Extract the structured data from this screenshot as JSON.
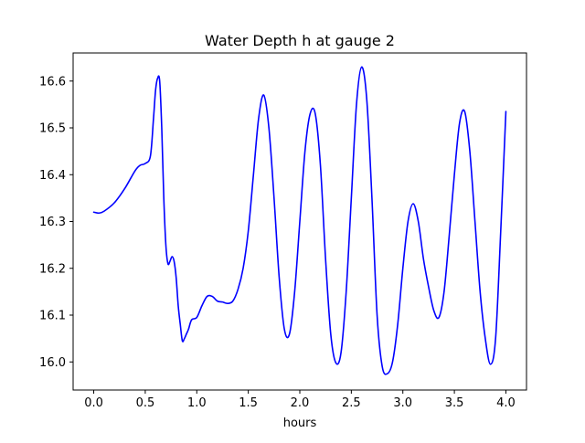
{
  "chart_data": {
    "type": "line",
    "title": "Water Depth h at gauge 2",
    "xlabel": "hours",
    "ylabel": "",
    "xlim": [
      -0.2,
      4.2
    ],
    "ylim": [
      15.94,
      16.66
    ],
    "xticks": [
      0.0,
      0.5,
      1.0,
      1.5,
      2.0,
      2.5,
      3.0,
      3.5,
      4.0
    ],
    "xtick_labels": [
      "0.0",
      "0.5",
      "1.0",
      "1.5",
      "2.0",
      "2.5",
      "3.0",
      "3.5",
      "4.0"
    ],
    "yticks": [
      16.0,
      16.1,
      16.2,
      16.3,
      16.4,
      16.5,
      16.6
    ],
    "ytick_labels": [
      "16.0",
      "16.1",
      "16.2",
      "16.3",
      "16.4",
      "16.5",
      "16.6"
    ],
    "grid": false,
    "series": [
      {
        "color": "#0000ff",
        "x": [
          0.0,
          0.05,
          0.1,
          0.2,
          0.3,
          0.4,
          0.45,
          0.5,
          0.55,
          0.58,
          0.6,
          0.62,
          0.64,
          0.66,
          0.68,
          0.7,
          0.72,
          0.74,
          0.76,
          0.78,
          0.8,
          0.82,
          0.84,
          0.86,
          0.88,
          0.9,
          0.92,
          0.95,
          1.0,
          1.05,
          1.1,
          1.15,
          1.2,
          1.25,
          1.3,
          1.35,
          1.4,
          1.45,
          1.5,
          1.55,
          1.6,
          1.65,
          1.7,
          1.75,
          1.8,
          1.85,
          1.9,
          1.95,
          2.0,
          2.05,
          2.1,
          2.15,
          2.2,
          2.25,
          2.3,
          2.35,
          2.4,
          2.45,
          2.5,
          2.55,
          2.6,
          2.65,
          2.7,
          2.75,
          2.8,
          2.85,
          2.9,
          2.95,
          3.0,
          3.05,
          3.1,
          3.15,
          3.2,
          3.25,
          3.3,
          3.35,
          3.4,
          3.45,
          3.5,
          3.55,
          3.6,
          3.65,
          3.7,
          3.75,
          3.8,
          3.85,
          3.9,
          3.95,
          4.0
        ],
        "y": [
          16.32,
          16.318,
          16.322,
          16.34,
          16.37,
          16.408,
          16.42,
          16.424,
          16.44,
          16.52,
          16.58,
          16.606,
          16.6,
          16.5,
          16.35,
          16.25,
          16.21,
          16.215,
          16.225,
          16.215,
          16.18,
          16.12,
          16.08,
          16.045,
          16.05,
          16.06,
          16.07,
          16.09,
          16.095,
          16.12,
          16.14,
          16.14,
          16.13,
          16.128,
          16.125,
          16.13,
          16.155,
          16.2,
          16.28,
          16.4,
          16.52,
          16.57,
          16.5,
          16.35,
          16.18,
          16.07,
          16.06,
          16.15,
          16.3,
          16.45,
          16.53,
          16.53,
          16.42,
          16.22,
          16.06,
          15.998,
          16.02,
          16.15,
          16.35,
          16.55,
          16.63,
          16.56,
          16.35,
          16.1,
          15.99,
          15.975,
          16.0,
          16.08,
          16.2,
          16.3,
          16.338,
          16.3,
          16.22,
          16.16,
          16.11,
          16.095,
          16.15,
          16.27,
          16.4,
          16.51,
          16.535,
          16.45,
          16.3,
          16.15,
          16.05,
          15.995,
          16.05,
          16.28,
          16.535
        ]
      }
    ]
  }
}
